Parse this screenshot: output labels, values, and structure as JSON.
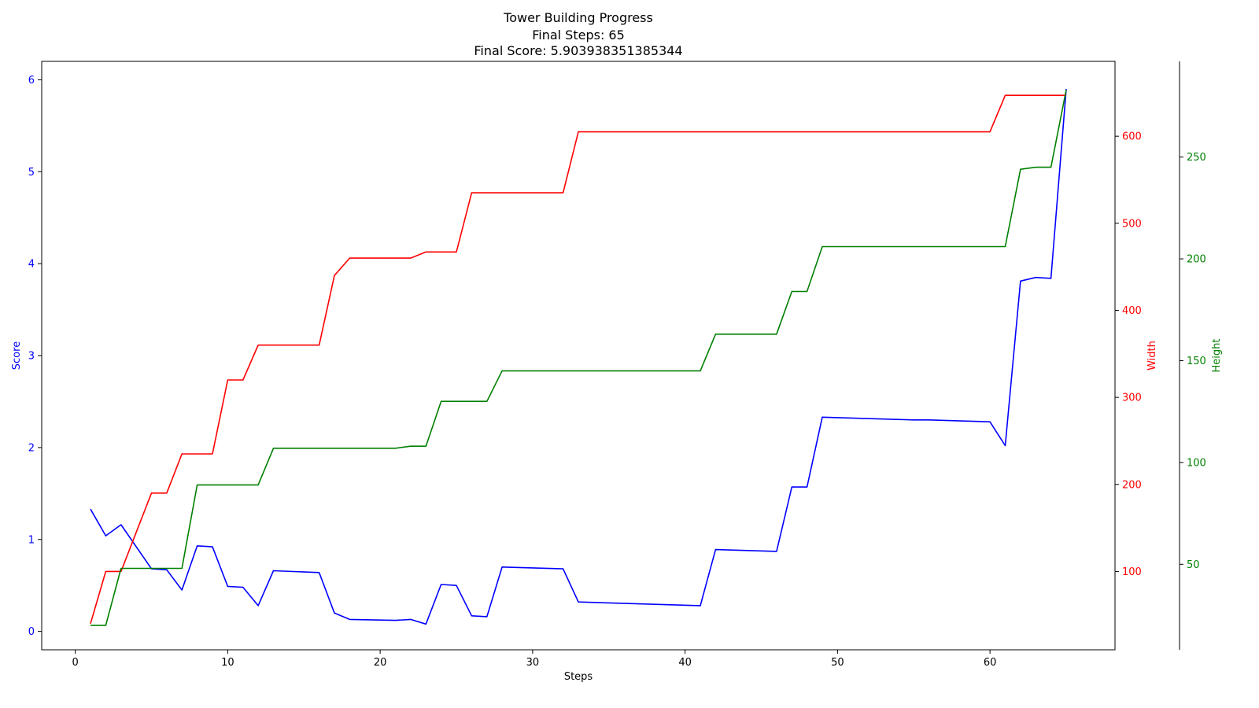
{
  "chart_data": {
    "type": "line",
    "title": [
      "Tower Building Progress",
      "Final Steps: 65",
      "Final Score: 5.903938351385344"
    ],
    "xlabel": "Steps",
    "xlim": [
      -2.2,
      68.2
    ],
    "x_ticks": [
      0,
      10,
      20,
      30,
      40,
      50,
      60
    ],
    "grid": false,
    "axes": [
      {
        "id": "score",
        "label": "Score",
        "color": "#0000ff",
        "side": "left",
        "ylim": [
          -0.2,
          6.2
        ],
        "ticks": [
          0,
          1,
          2,
          3,
          4,
          5,
          6
        ]
      },
      {
        "id": "width",
        "label": "Width",
        "color": "#ff0000",
        "side": "right",
        "ylim": [
          10,
          686
        ],
        "ticks": [
          100,
          200,
          300,
          400,
          500,
          600
        ]
      },
      {
        "id": "height",
        "label": "Height",
        "color": "#008000",
        "side": "right-outer",
        "ylim": [
          8,
          297
        ],
        "ticks": [
          50,
          100,
          150,
          200,
          250
        ]
      }
    ],
    "series": [
      {
        "axis": "score",
        "x": [
          1,
          2,
          3,
          5,
          6,
          7,
          8,
          9,
          10,
          11,
          12,
          13,
          16,
          17,
          18,
          21,
          22,
          23,
          24,
          25,
          26,
          27,
          28,
          32,
          33,
          41,
          42,
          46,
          47,
          48,
          49,
          55,
          56,
          60,
          61,
          62,
          63,
          64,
          65
        ],
        "y": [
          1.33,
          1.04,
          1.16,
          0.68,
          0.67,
          0.45,
          0.93,
          0.92,
          0.49,
          0.48,
          0.28,
          0.66,
          0.64,
          0.2,
          0.13,
          0.12,
          0.13,
          0.08,
          0.51,
          0.5,
          0.17,
          0.16,
          0.7,
          0.68,
          0.32,
          0.28,
          0.89,
          0.87,
          1.57,
          1.57,
          2.33,
          2.3,
          2.3,
          2.28,
          2.02,
          3.81,
          3.85,
          3.84,
          5.9
        ]
      },
      {
        "axis": "width",
        "x": [
          1,
          2,
          3,
          5,
          6,
          7,
          9,
          10,
          11,
          12,
          16,
          17,
          18,
          22,
          23,
          25,
          26,
          32,
          33,
          60,
          61,
          65
        ],
        "y": [
          40,
          100,
          100,
          190,
          190,
          235,
          235,
          320,
          320,
          360,
          360,
          440,
          460,
          460,
          467,
          467,
          535,
          535,
          605,
          605,
          647,
          647
        ]
      },
      {
        "axis": "height",
        "x": [
          1,
          2,
          3,
          7,
          8,
          12,
          13,
          21,
          22,
          23,
          24,
          27,
          28,
          41,
          42,
          46,
          47,
          48,
          49,
          55,
          56,
          61,
          62,
          63,
          64,
          65
        ],
        "y": [
          20,
          20,
          48,
          48,
          89,
          89,
          107,
          107,
          108,
          108,
          130,
          130,
          145,
          145,
          163,
          163,
          184,
          184,
          206,
          206,
          206,
          206,
          244,
          245,
          245,
          283
        ]
      }
    ]
  }
}
